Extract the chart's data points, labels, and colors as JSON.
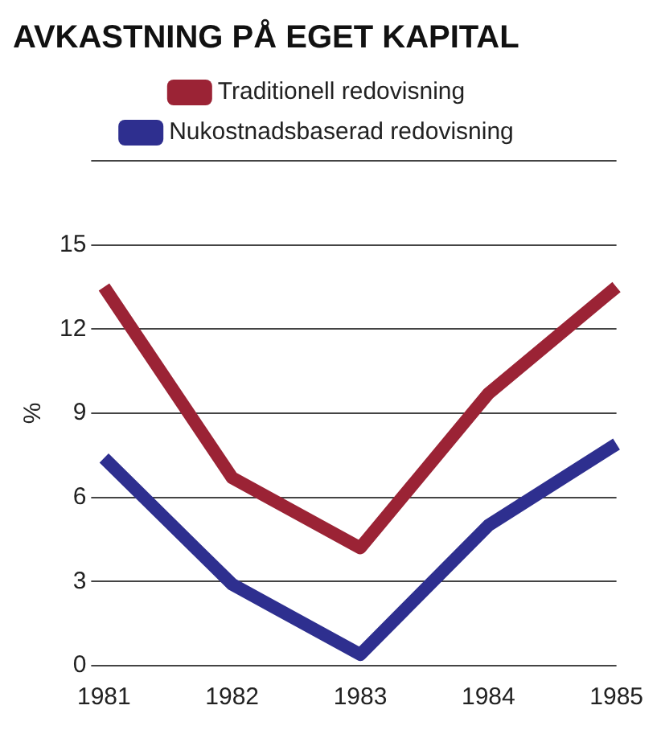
{
  "chart_data": {
    "type": "line",
    "title": "AVKASTNING PÅ EGET KAPITAL",
    "ylabel": "%",
    "categories": [
      "1981",
      "1982",
      "1983",
      "1984",
      "1985"
    ],
    "series": [
      {
        "name": "Traditionell redovisning",
        "color": "#9b2335",
        "values": [
          13.5,
          6.7,
          4.2,
          9.7,
          13.5
        ]
      },
      {
        "name": "Nukostnadsbaserad redovisning",
        "color": "#2e2f8f",
        "values": [
          7.4,
          2.9,
          0.4,
          5.0,
          7.9
        ]
      }
    ],
    "ylim": [
      0,
      18
    ],
    "yticks": [
      0,
      3,
      6,
      9,
      12,
      15,
      {
        "value": 18,
        "label": null
      }
    ],
    "grid": "y",
    "legend": "top left",
    "marker": "none",
    "line_style": "solid"
  }
}
